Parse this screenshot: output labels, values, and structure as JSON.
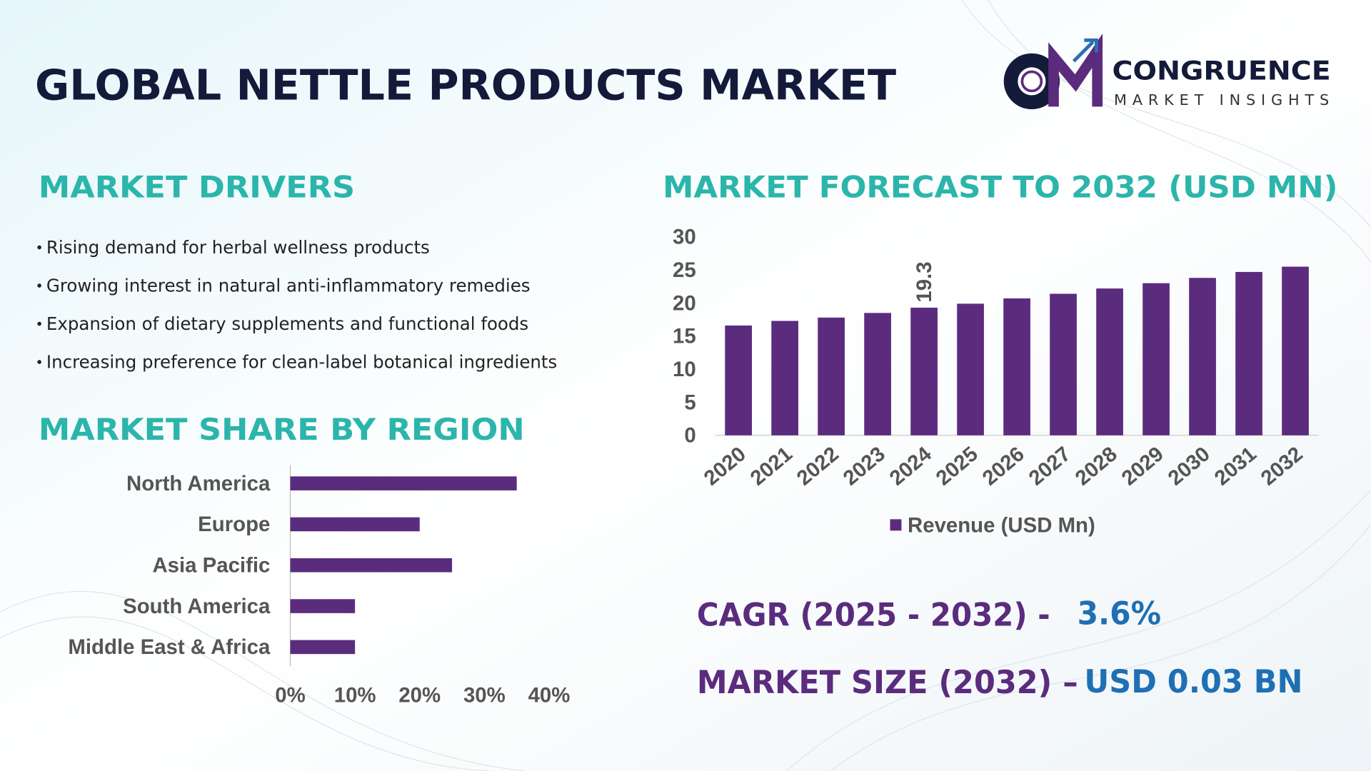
{
  "title": "GLOBAL NETTLE PRODUCTS MARKET",
  "logo": {
    "name": "CONGRUENCE",
    "tagline": "MARKET INSIGHTS"
  },
  "drivers": {
    "heading": "MARKET DRIVERS",
    "items": [
      "Rising demand for herbal wellness products",
      "Growing interest in natural anti-inflammatory remedies",
      "Expansion of dietary supplements and functional foods",
      "Increasing preference for clean-label botanical ingredients"
    ]
  },
  "cagr": {
    "label": "CAGR (2025 - 2032) -",
    "value": "3.6%"
  },
  "market_size": {
    "label": "MARKET SIZE (2032) –",
    "value": "USD 0.03 BN"
  },
  "chart_data": [
    {
      "type": "hbar",
      "title": "MARKET SHARE BY REGION",
      "categories": [
        "North America",
        "Europe",
        "Asia Pacific",
        "South America",
        "Middle East & Africa"
      ],
      "values": [
        35,
        20,
        25,
        10,
        10
      ],
      "color": "#5b2c7d",
      "xlim": [
        0,
        40
      ],
      "xticks": [
        {
          "value": 0,
          "label": "0%"
        },
        {
          "value": 10,
          "label": "10%"
        },
        {
          "value": 20,
          "label": "20%"
        },
        {
          "value": 30,
          "label": "30%"
        },
        {
          "value": 40,
          "label": "40%"
        }
      ]
    },
    {
      "type": "bar",
      "title": "MARKET FORECAST TO 2032 (USD MN)",
      "categories": [
        "2020",
        "2021",
        "2022",
        "2023",
        "2024",
        "2025",
        "2026",
        "2027",
        "2028",
        "2029",
        "2030",
        "2031",
        "2032"
      ],
      "series": [
        {
          "name": "Revenue (USD Mn)",
          "color": "#5b2c7d",
          "values": [
            16.6,
            17.3,
            17.8,
            18.5,
            19.3,
            19.9,
            20.7,
            21.4,
            22.2,
            23.0,
            23.8,
            24.7,
            25.5
          ],
          "value_labels": [
            null,
            null,
            null,
            null,
            "19.3",
            null,
            null,
            null,
            null,
            null,
            null,
            null,
            null
          ]
        }
      ],
      "ylim": [
        0,
        30
      ],
      "yticks": [
        0,
        5,
        10,
        15,
        20,
        25,
        30
      ],
      "legend": "bottom"
    }
  ]
}
